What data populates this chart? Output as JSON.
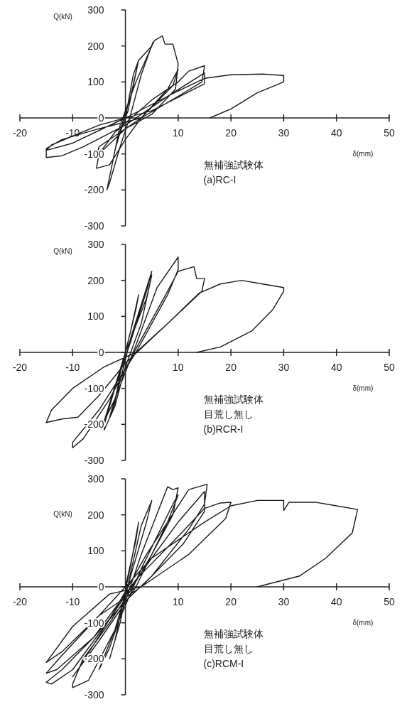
{
  "chart_data": [
    {
      "type": "line",
      "xlabel": "δ(mm)",
      "ylabel": "Q(kN)",
      "annotations": [
        "無補強試験体",
        "(a)RC-I"
      ],
      "xlim": [
        -20,
        50
      ],
      "ylim": [
        -300,
        300
      ],
      "xticks": [
        -20,
        -10,
        10,
        20,
        30,
        40,
        50
      ],
      "yticks": [
        -300,
        -200,
        -100,
        0,
        100,
        200,
        300
      ],
      "grid": false,
      "series": [
        {
          "color": "#1a1a1a",
          "x": [
            0,
            1.5,
            2.5,
            0.5,
            -1,
            -2,
            -0.5,
            1,
            2.5,
            5,
            5.2,
            3,
            1,
            -1,
            -3,
            -3.5,
            -1,
            2,
            5,
            5.5,
            7,
            7.5,
            9,
            10,
            9.5,
            5,
            0,
            -5,
            -5.5,
            -3,
            0,
            3,
            8,
            10,
            9,
            3,
            -5,
            -5.5,
            -2,
            5,
            10,
            12,
            15,
            14.5,
            10,
            3,
            -5,
            -12,
            -15,
            -15,
            -12,
            -8,
            0,
            8,
            15,
            15,
            5,
            -5,
            -14,
            -15,
            -10,
            0,
            10,
            15,
            20,
            26,
            30,
            30,
            25,
            20,
            16
          ],
          "values": [
            0,
            120,
            160,
            20,
            -40,
            -90,
            -10,
            60,
            160,
            200,
            210,
            120,
            10,
            -80,
            -180,
            -200,
            -20,
            100,
            200,
            215,
            228,
            205,
            205,
            150,
            80,
            10,
            -30,
            -100,
            -140,
            -130,
            -60,
            0,
            80,
            135,
            90,
            0,
            -80,
            -110,
            -40,
            50,
            100,
            130,
            145,
            100,
            60,
            0,
            -30,
            -60,
            -85,
            -110,
            -105,
            -80,
            -20,
            60,
            125,
            95,
            20,
            -20,
            -75,
            -90,
            -70,
            0,
            75,
            110,
            120,
            122,
            118,
            100,
            70,
            25,
            0
          ]
        }
      ]
    },
    {
      "type": "line",
      "xlabel": "δ(mm)",
      "ylabel": "Q(kN)",
      "annotations": [
        "無補強試験体",
        "目荒し無し",
        "(b)RCR-I"
      ],
      "xlim": [
        -20,
        50
      ],
      "ylim": [
        -300,
        300
      ],
      "xticks": [
        -20,
        -10,
        10,
        20,
        30,
        40,
        50
      ],
      "yticks": [
        -300,
        -200,
        -100,
        0,
        100,
        200,
        300
      ],
      "grid": false,
      "series": [
        {
          "color": "#1a1a1a",
          "x": [
            0,
            2,
            2.5,
            1,
            -1,
            -2,
            -3,
            -1,
            1,
            5,
            4,
            1,
            -2,
            -4,
            -4,
            -2,
            0,
            3,
            5,
            4,
            0,
            -4,
            -2,
            2,
            6,
            10,
            10,
            8,
            2,
            -5,
            -10,
            -10,
            -8,
            -3,
            2,
            8,
            10,
            13,
            13.5,
            15,
            14.5,
            8,
            2,
            -4,
            -10,
            -14,
            -15,
            -12,
            -9,
            -5,
            0,
            8,
            14,
            18,
            22,
            26,
            30,
            30,
            28,
            24,
            18,
            13.5
          ],
          "values": [
            0,
            120,
            160,
            60,
            -60,
            -140,
            -180,
            -80,
            40,
            225,
            170,
            30,
            -100,
            -200,
            -215,
            -150,
            -40,
            80,
            215,
            150,
            0,
            -190,
            -130,
            20,
            180,
            265,
            230,
            160,
            0,
            -160,
            -250,
            -265,
            -240,
            -130,
            10,
            170,
            225,
            238,
            205,
            205,
            170,
            80,
            0,
            -40,
            -100,
            -160,
            -195,
            -185,
            -180,
            -120,
            -30,
            80,
            165,
            190,
            200,
            190,
            180,
            170,
            120,
            60,
            15,
            0
          ]
        }
      ]
    },
    {
      "type": "line",
      "xlabel": "δ(mm)",
      "ylabel": "Q(kN)",
      "annotations": [
        "無補強試験体",
        "目荒し無し",
        "(c)RCM-I"
      ],
      "xlim": [
        -20,
        50
      ],
      "ylim": [
        -300,
        300
      ],
      "xticks": [
        -20,
        -10,
        10,
        20,
        30,
        40,
        50
      ],
      "yticks": [
        -300,
        -200,
        -100,
        0,
        100,
        200,
        300
      ],
      "grid": false,
      "series": [
        {
          "color": "#1a1a1a",
          "x": [
            0,
            2,
            2.5,
            1,
            -1,
            -2,
            -3,
            -1,
            1,
            3,
            5,
            4,
            1,
            -2,
            -5,
            -3,
            0,
            3,
            8,
            9,
            10,
            9,
            5,
            1,
            -3,
            -8,
            -10,
            -10,
            -7,
            -2,
            3,
            9,
            10,
            8,
            2,
            -5,
            -10,
            -9,
            -3,
            4,
            12,
            15.5,
            15,
            12,
            5,
            0,
            -6,
            -12,
            -15,
            -14,
            -10,
            -4,
            3,
            10,
            15,
            15,
            11,
            3,
            -5,
            -12,
            -15,
            -13,
            -6,
            2,
            10,
            15,
            18,
            20,
            19,
            12,
            3,
            -3,
            -10,
            -15,
            -12,
            -5,
            5,
            15,
            20,
            25,
            30,
            30,
            31,
            36,
            40,
            44,
            43,
            38,
            33,
            25
          ],
          "values": [
            0,
            130,
            180,
            60,
            -80,
            -150,
            -200,
            -100,
            40,
            170,
            240,
            180,
            30,
            -120,
            -230,
            -170,
            -40,
            90,
            278,
            270,
            275,
            200,
            90,
            -10,
            -100,
            -200,
            -270,
            -280,
            -260,
            -120,
            50,
            230,
            255,
            180,
            0,
            -150,
            -250,
            -230,
            -90,
            90,
            270,
            285,
            230,
            160,
            30,
            -40,
            -140,
            -230,
            -265,
            -270,
            -230,
            -110,
            40,
            180,
            265,
            210,
            120,
            0,
            -80,
            -190,
            -240,
            -230,
            -140,
            20,
            140,
            218,
            233,
            235,
            190,
            90,
            0,
            -20,
            -110,
            -210,
            -180,
            -80,
            80,
            180,
            225,
            240,
            240,
            212,
            235,
            235,
            225,
            215,
            150,
            80,
            30,
            0
          ]
        }
      ]
    }
  ]
}
